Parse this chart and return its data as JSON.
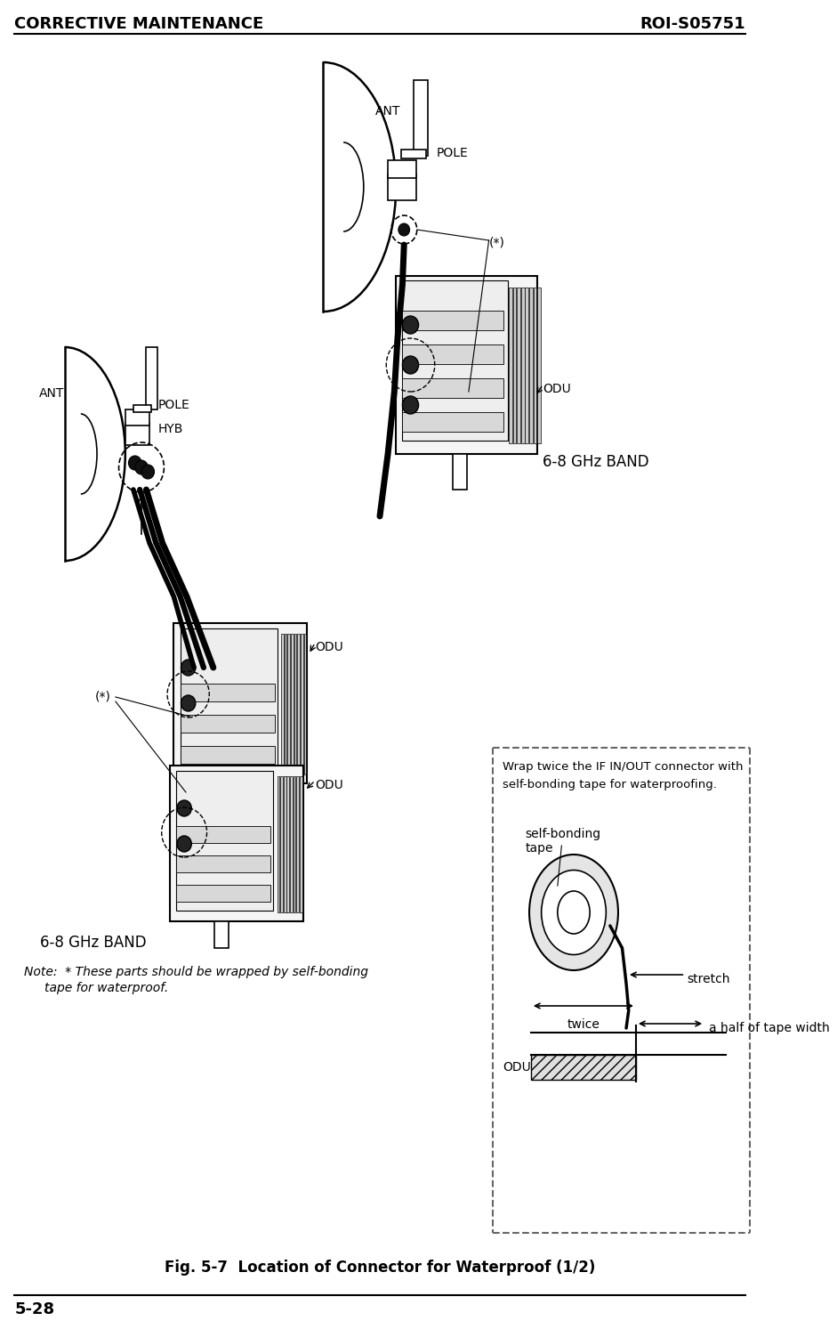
{
  "header_left": "CORRECTIVE MAINTENANCE",
  "header_right": "ROI-S05751",
  "footer_left": "5-28",
  "figure_caption": "Fig. 5-7  Location of Connector for Waterproof (1/2)",
  "note_text": "Note:  * These parts should be wrapped by self-bonding\n         tape for waterproof.",
  "band_label_right": "6-8 GHz BAND",
  "band_label_left": "6-8 GHz BAND",
  "wrap_box_text1": "Wrap twice the IF IN/OUT connector with",
  "wrap_box_text2": "self-bonding tape for waterproofing.",
  "label_ant_right": "ANT",
  "label_pole_right": "POLE",
  "label_star_right": "(*)",
  "label_odu_right": "ODU",
  "label_ant_left": "ANT",
  "label_pole_left": "POLE",
  "label_hyb_left": "HYB",
  "label_odu_mid": "ODU",
  "label_odu_lower": "ODU",
  "label_star_left": "(*)",
  "label_self_bonding": "self-bonding\ntape",
  "label_stretch": "stretch",
  "label_odu_box": "ODU",
  "label_twice": "twice",
  "label_half": "a half of tape width",
  "bg_color": "#ffffff",
  "line_color": "#000000",
  "dashed_line_color": "#666666",
  "header_font_size": 13,
  "body_font_size": 10,
  "small_font_size": 9,
  "caption_font_size": 11
}
